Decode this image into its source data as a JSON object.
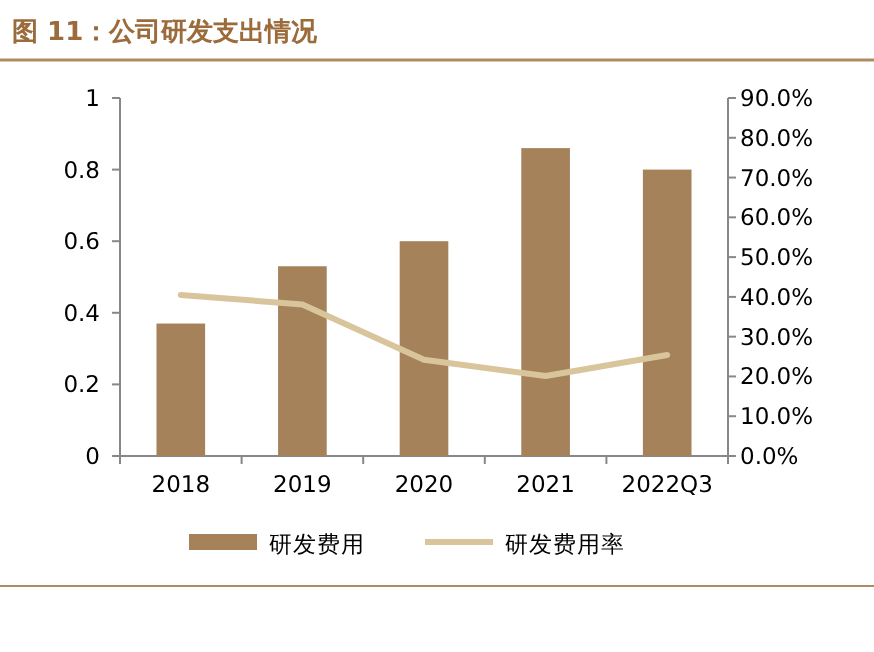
{
  "chart_data": {
    "type": "bar",
    "title": "图 11：公司研发支出情况",
    "categories": [
      "2018",
      "2019",
      "2020",
      "2021",
      "2022Q3"
    ],
    "series": [
      {
        "name": "研发费用",
        "color": "#a5825a",
        "values": [
          0.37,
          0.53,
          0.6,
          0.86,
          0.8
        ]
      },
      {
        "name": "研发费用率",
        "type": "line",
        "axis": "y2",
        "color": "#d9c59c",
        "values": [
          40.5,
          38.1,
          24.2,
          20.1,
          25.4
        ]
      }
    ],
    "ylim": [
      0,
      1
    ],
    "yticks": [
      0,
      0.2,
      0.4,
      0.6,
      0.8,
      1
    ],
    "y2lim": [
      0,
      90
    ],
    "y2ticks": [
      {
        "value": 0,
        "label": "0.0%"
      },
      {
        "value": 10,
        "label": "10.0%"
      },
      {
        "value": 20,
        "label": "20.0%"
      },
      {
        "value": 30,
        "label": "30.0%"
      },
      {
        "value": 40,
        "label": "40.0%"
      },
      {
        "value": 50,
        "label": "50.0%"
      },
      {
        "value": 60,
        "label": "60.0%"
      },
      {
        "value": 70,
        "label": "70.0%"
      },
      {
        "value": 80,
        "label": "80.0%"
      },
      {
        "value": 90,
        "label": "90.0%"
      }
    ],
    "legend": "bottom"
  }
}
